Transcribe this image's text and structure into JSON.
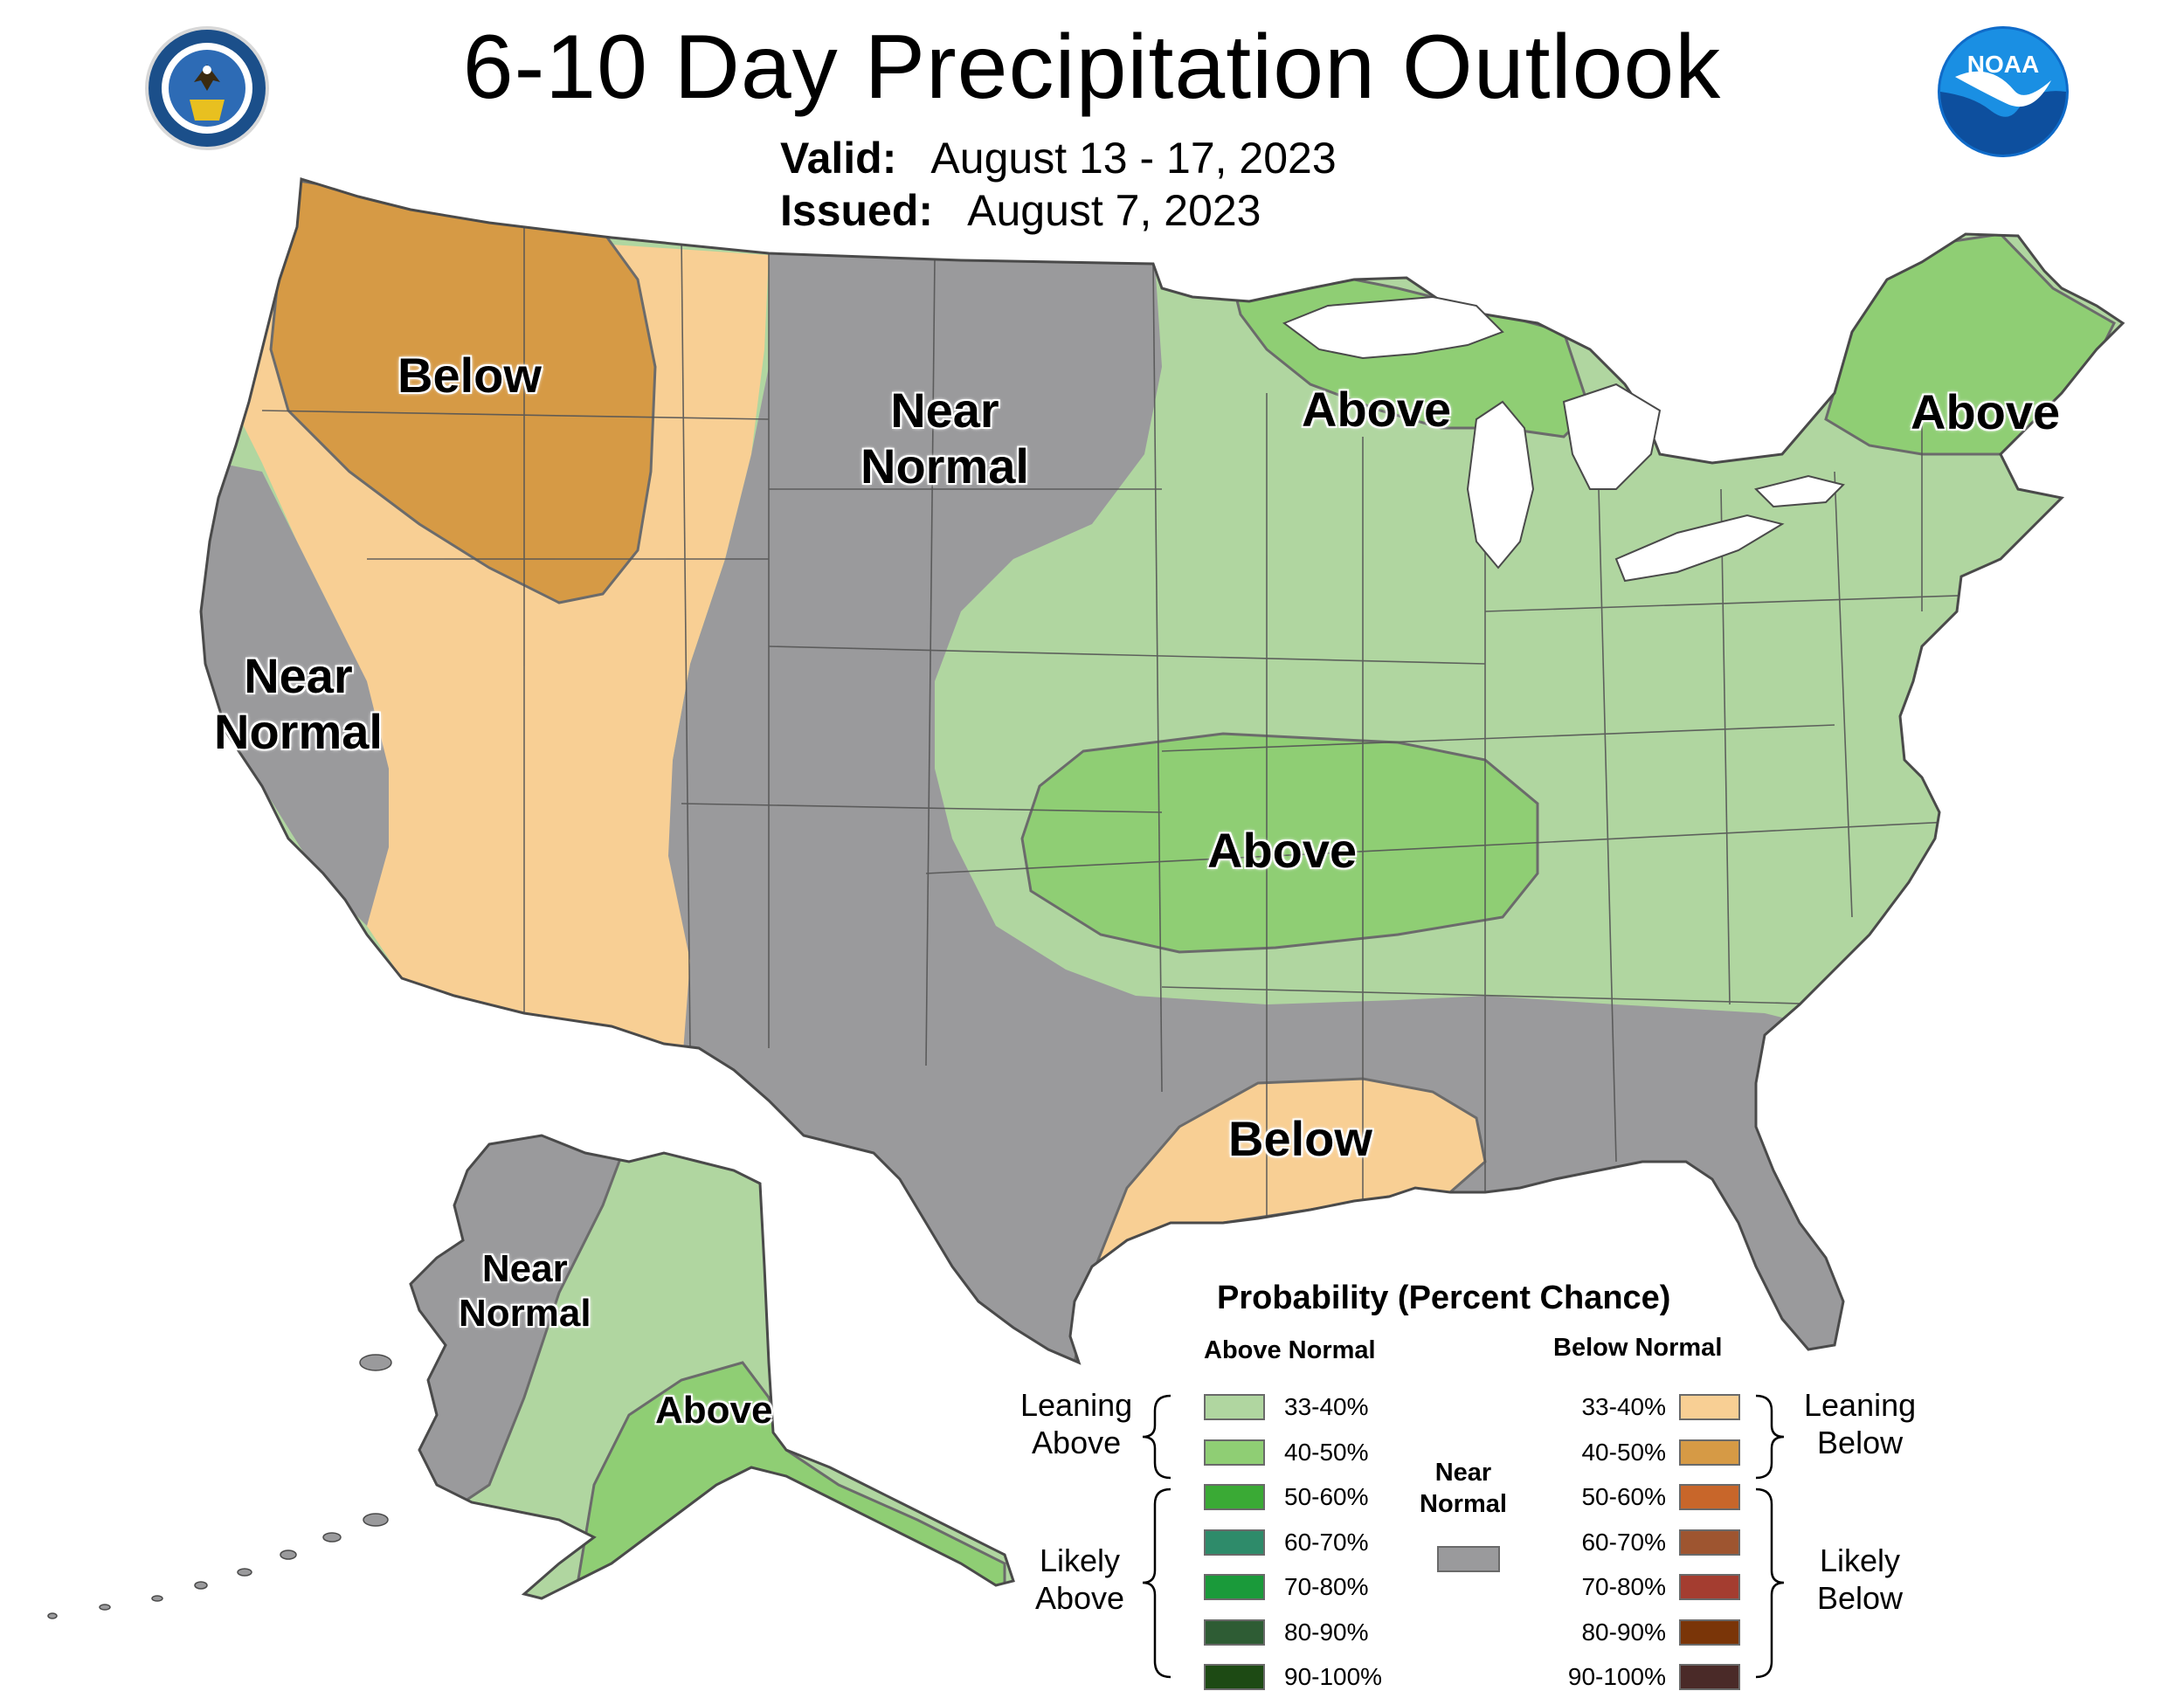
{
  "title": "6-10 Day Precipitation Outlook",
  "valid_label": "Valid:",
  "valid_value": "August 13 - 17, 2023",
  "issued_label": "Issued:",
  "issued_value": "August 7, 2023",
  "logos": {
    "left": "department-of-commerce-seal",
    "right": "noaa-logo",
    "right_text": "NOAA"
  },
  "region_labels": {
    "nw_below": "Below",
    "north_near_normal": "Near\nNormal",
    "ca_near_normal": "Near\nNormal",
    "great_lakes_above": "Above",
    "new_england_above": "Above",
    "central_above": "Above",
    "gulf_below": "Below",
    "ak_near_normal": "Near\nNormal",
    "ak_above": "Above"
  },
  "legend": {
    "title": "Probability (Percent Chance)",
    "above_header": "Above Normal",
    "below_header": "Below Normal",
    "near_header": "Near\nNormal",
    "leaning_above": "Leaning\nAbove",
    "likely_above": "Likely\nAbove",
    "leaning_below": "Leaning\nBelow",
    "likely_below": "Likely\nBelow",
    "above_bins": [
      {
        "label": "33-40%",
        "color": "#b0d6a0"
      },
      {
        "label": "40-50%",
        "color": "#8fce74"
      },
      {
        "label": "50-60%",
        "color": "#3aaa35"
      },
      {
        "label": "60-70%",
        "color": "#2e8b6a"
      },
      {
        "label": "70-80%",
        "color": "#1a9a3a"
      },
      {
        "label": "80-90%",
        "color": "#2e5c34"
      },
      {
        "label": "90-100%",
        "color": "#1d4a14"
      }
    ],
    "below_bins": [
      {
        "label": "33-40%",
        "color": "#f8cf94"
      },
      {
        "label": "40-50%",
        "color": "#d69a45"
      },
      {
        "label": "50-60%",
        "color": "#c8662a"
      },
      {
        "label": "60-70%",
        "color": "#9e5530"
      },
      {
        "label": "70-80%",
        "color": "#a43d30"
      },
      {
        "label": "80-90%",
        "color": "#7a3508"
      },
      {
        "label": "90-100%",
        "color": "#4a2a28"
      }
    ],
    "near_color": "#9a9a9c"
  },
  "colors": {
    "near_normal": "#9a9a9c",
    "leaning_below": "#f8cf94",
    "below_40_50": "#d69a45",
    "leaning_above": "#b0d6a0",
    "above_40_50": "#8fce74",
    "water": "#ffffff",
    "border": "#555555"
  }
}
